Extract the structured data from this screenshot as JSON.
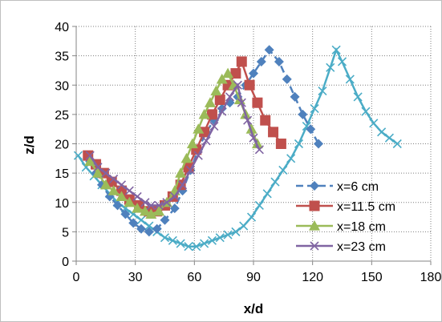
{
  "chart_data": {
    "type": "scatter",
    "title": "",
    "xlabel": "x/d",
    "ylabel": "z/d",
    "xlim": [
      0,
      180
    ],
    "ylim": [
      0,
      40
    ],
    "xticks": [
      0,
      30,
      60,
      90,
      120,
      150,
      180
    ],
    "yticks": [
      0,
      5,
      10,
      15,
      20,
      25,
      30,
      35,
      40
    ],
    "grid": true,
    "legend_position": "bottom-right inside",
    "series": [
      {
        "name": "x=6 cm",
        "color": "#4f81bd",
        "line": "dashed",
        "marker": "diamond",
        "points": [
          [
            7,
            17
          ],
          [
            10,
            15
          ],
          [
            13,
            13
          ],
          [
            17,
            11
          ],
          [
            21,
            9.5
          ],
          [
            25,
            8
          ],
          [
            29,
            6.5
          ],
          [
            33,
            5.5
          ],
          [
            37,
            5
          ],
          [
            41,
            5.5
          ],
          [
            45,
            7
          ],
          [
            50,
            9
          ],
          [
            54,
            12
          ],
          [
            58,
            15.5
          ],
          [
            62,
            19
          ],
          [
            66,
            22
          ],
          [
            70,
            24
          ],
          [
            74,
            26
          ],
          [
            78,
            27
          ],
          [
            82,
            28
          ],
          [
            86,
            30
          ],
          [
            90,
            32
          ],
          [
            94,
            34
          ],
          [
            98,
            36
          ],
          [
            103,
            34
          ],
          [
            107,
            31
          ],
          [
            111,
            28
          ],
          [
            115,
            25
          ],
          [
            119,
            22.5
          ],
          [
            123,
            20
          ]
        ]
      },
      {
        "name": "x=11.5 cm",
        "color": "#c0504d",
        "line": "solid",
        "marker": "square",
        "points": [
          [
            6,
            18
          ],
          [
            10,
            16.5
          ],
          [
            14,
            15
          ],
          [
            18,
            13.5
          ],
          [
            23,
            12
          ],
          [
            27,
            10.5
          ],
          [
            32,
            9.5
          ],
          [
            37,
            8.5
          ],
          [
            41,
            8.5
          ],
          [
            45,
            9.5
          ],
          [
            49,
            11
          ],
          [
            53,
            13
          ],
          [
            57,
            16
          ],
          [
            61,
            19
          ],
          [
            65,
            22
          ],
          [
            69,
            25
          ],
          [
            73,
            27.5
          ],
          [
            77,
            30
          ],
          [
            81,
            32
          ],
          [
            84,
            34
          ],
          [
            88,
            30
          ],
          [
            92,
            27
          ],
          [
            96,
            24
          ],
          [
            100,
            22
          ],
          [
            104,
            20
          ]
        ]
      },
      {
        "name": "x=18 cm",
        "color": "#9bbb59",
        "line": "solid",
        "marker": "triangle",
        "points": [
          [
            7,
            17
          ],
          [
            11,
            15
          ],
          [
            15,
            13
          ],
          [
            19,
            12
          ],
          [
            23,
            11
          ],
          [
            27,
            10
          ],
          [
            31,
            9
          ],
          [
            35,
            8.5
          ],
          [
            38,
            8
          ],
          [
            42,
            8.5
          ],
          [
            46,
            10
          ],
          [
            50,
            12
          ],
          [
            53,
            15
          ],
          [
            56,
            17.5
          ],
          [
            59,
            20
          ],
          [
            62,
            22.5
          ],
          [
            65,
            25
          ],
          [
            68,
            27
          ],
          [
            71,
            29
          ],
          [
            74,
            31
          ],
          [
            77,
            32
          ],
          [
            80,
            30
          ],
          [
            83,
            27.5
          ],
          [
            86,
            25
          ],
          [
            89,
            22.5
          ],
          [
            92,
            20
          ]
        ]
      },
      {
        "name": "x=23 cm",
        "color": "#8064a2",
        "line": "solid",
        "marker": "x",
        "points": [
          [
            7,
            18
          ],
          [
            11,
            16
          ],
          [
            15,
            15
          ],
          [
            19,
            14
          ],
          [
            23,
            13
          ],
          [
            27,
            12
          ],
          [
            31,
            11
          ],
          [
            35,
            10
          ],
          [
            38,
            9.5
          ],
          [
            42,
            9.5
          ],
          [
            46,
            10
          ],
          [
            50,
            11
          ],
          [
            54,
            13
          ],
          [
            58,
            15.5
          ],
          [
            62,
            18
          ],
          [
            66,
            20.5
          ],
          [
            70,
            23
          ],
          [
            74,
            25.5
          ],
          [
            78,
            28
          ],
          [
            82,
            30
          ],
          [
            84,
            27
          ],
          [
            87,
            24
          ],
          [
            90,
            21
          ],
          [
            93,
            19
          ]
        ]
      },
      {
        "name": "",
        "color": "#4bacc6",
        "line": "solid",
        "marker": "x",
        "points": [
          [
            1,
            18
          ],
          [
            5,
            16
          ],
          [
            9,
            14.5
          ],
          [
            13,
            13
          ],
          [
            17,
            11.5
          ],
          [
            21,
            10
          ],
          [
            25,
            9
          ],
          [
            29,
            8
          ],
          [
            33,
            7
          ],
          [
            37,
            6
          ],
          [
            41,
            5
          ],
          [
            45,
            4
          ],
          [
            49,
            3.5
          ],
          [
            53,
            3
          ],
          [
            57,
            2.5
          ],
          [
            61,
            2.5
          ],
          [
            65,
            3
          ],
          [
            69,
            3.5
          ],
          [
            73,
            4
          ],
          [
            77,
            4.5
          ],
          [
            81,
            5
          ],
          [
            85,
            6
          ],
          [
            89,
            7.5
          ],
          [
            93,
            9.5
          ],
          [
            97,
            11.5
          ],
          [
            101,
            13.5
          ],
          [
            105,
            15.5
          ],
          [
            109,
            17.5
          ],
          [
            113,
            20
          ],
          [
            117,
            23
          ],
          [
            121,
            26
          ],
          [
            125,
            29
          ],
          [
            129,
            33
          ],
          [
            132,
            36
          ],
          [
            135,
            34
          ],
          [
            139,
            31
          ],
          [
            143,
            28
          ],
          [
            147,
            25.5
          ],
          [
            151,
            23.5
          ],
          [
            155,
            22
          ],
          [
            159,
            21
          ],
          [
            163,
            20
          ]
        ]
      }
    ]
  }
}
